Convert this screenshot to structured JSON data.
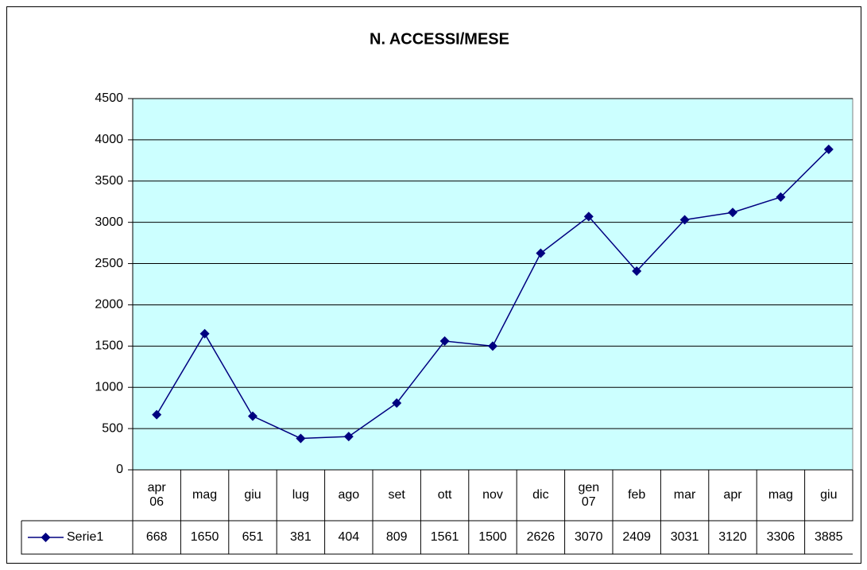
{
  "chart_data": {
    "type": "line",
    "title": "N. ACCESSI/MESE",
    "categories": [
      "apr 06",
      "mag",
      "giu",
      "lug",
      "ago",
      "set",
      "ott",
      "nov",
      "dic",
      "gen 07",
      "feb",
      "mar",
      "apr",
      "mag",
      "giu"
    ],
    "series": [
      {
        "name": "Serie1",
        "color": "#000080",
        "values": [
          668,
          1650,
          651,
          381,
          404,
          809,
          1561,
          1500,
          2626,
          3070,
          2409,
          3031,
          3120,
          3306,
          3885
        ]
      }
    ],
    "ylim": [
      0,
      4500
    ],
    "yticks": [
      0,
      500,
      1000,
      1500,
      2000,
      2500,
      3000,
      3500,
      4000,
      4500
    ],
    "grid": true,
    "plot_background": "#ccffff",
    "data_table": true
  }
}
